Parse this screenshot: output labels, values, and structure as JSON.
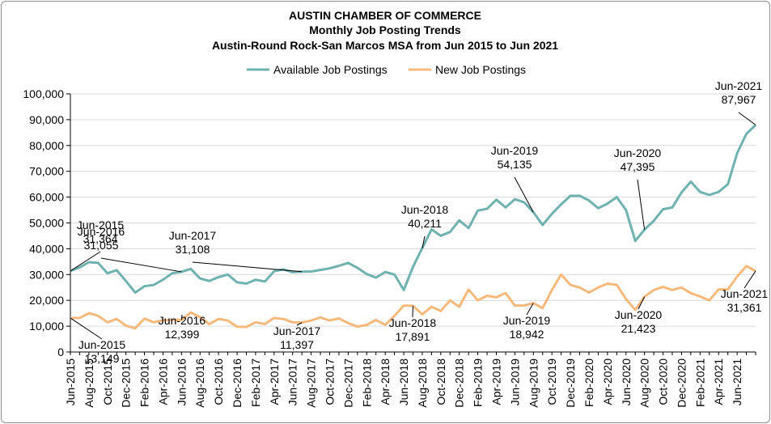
{
  "chart_data": {
    "type": "line",
    "title": [
      "AUSTIN CHAMBER OF COMMERCE",
      "Monthly Job Posting Trends",
      "Austin-Round Rock-San Marcos MSA from Jun 2015 to Jun 2021"
    ],
    "ylim": [
      0,
      100000
    ],
    "yticks": [
      "0",
      "10,000",
      "20,000",
      "30,000",
      "40,000",
      "50,000",
      "60,000",
      "70,000",
      "80,000",
      "90,000",
      "100,000"
    ],
    "x_labels": [
      "Jun-2015",
      "Aug-2015",
      "Oct-2015",
      "Dec-2015",
      "Feb-2016",
      "Apr-2016",
      "Jun-2016",
      "Aug-2016",
      "Oct-2016",
      "Dec-2016",
      "Feb-2017",
      "Apr-2017",
      "Jun-2017",
      "Aug-2017",
      "Oct-2017",
      "Dec-2017",
      "Feb-2018",
      "Apr-2018",
      "Jun-2018",
      "Aug-2018",
      "Oct-2018",
      "Dec-2018",
      "Feb-2019",
      "Apr-2019",
      "Jun-2019",
      "Aug-2019",
      "Oct-2019",
      "Dec-2019",
      "Feb-2020",
      "Apr-2020",
      "Jun-2020",
      "Aug-2020",
      "Oct-2020",
      "Dec-2020",
      "Feb-2021",
      "Apr-2021",
      "Jun-2021"
    ],
    "legend_position": "top",
    "gridlines": true,
    "series": [
      {
        "name": "Available Job Postings",
        "color": "#6fb2b0",
        "values": [
          31364,
          32800,
          34800,
          34500,
          30500,
          31700,
          27500,
          23000,
          25500,
          26000,
          28000,
          30500,
          31055,
          32200,
          28500,
          27500,
          29000,
          30000,
          27000,
          26500,
          28000,
          27300,
          31300,
          32000,
          30900,
          31108,
          31200,
          31800,
          32400,
          33400,
          34500,
          32600,
          30200,
          28800,
          31000,
          30000,
          24000,
          33000,
          40211,
          47500,
          45000,
          46500,
          51000,
          48000,
          54800,
          55500,
          59000,
          56000,
          59200,
          58000,
          54135,
          49200,
          53500,
          57200,
          60500,
          60500,
          58700,
          55700,
          57500,
          60000,
          55000,
          43000,
          47395,
          50800,
          55300,
          56000,
          61800,
          66000,
          62000,
          60800,
          62000,
          65000,
          77000,
          84500,
          87967
        ],
        "annotations": [
          {
            "index": 0,
            "label": "Jun-2015",
            "value": "31,364"
          },
          {
            "index": 12,
            "label": "Jun-2016",
            "value": "31,055"
          },
          {
            "index": 25,
            "label": "Jun-2017",
            "value": "31,108"
          },
          {
            "index": 38,
            "label": "Jun-2018",
            "value": "40,211"
          },
          {
            "index": 50,
            "label": "Jun-2019",
            "value": "54,135"
          },
          {
            "index": 62,
            "label": "Jun-2020",
            "value": "47,395"
          },
          {
            "index": 74,
            "label": "Jun-2021",
            "value": "87,967"
          }
        ]
      },
      {
        "name": "New Job Postings",
        "color": "#f5b97c",
        "values": [
          13149,
          13200,
          15000,
          14000,
          11500,
          12800,
          10200,
          9200,
          12900,
          11500,
          12300,
          12400,
          12399,
          15300,
          13500,
          10800,
          12800,
          12200,
          9800,
          9700,
          11500,
          10800,
          13200,
          12800,
          11500,
          11397,
          12200,
          13400,
          12200,
          13000,
          11200,
          9800,
          10500,
          12400,
          10500,
          14000,
          18000,
          17891,
          14600,
          17500,
          15900,
          20000,
          17500,
          24200,
          20000,
          21800,
          21200,
          22800,
          18000,
          18000,
          18942,
          17000,
          24000,
          30000,
          26000,
          25000,
          23000,
          25000,
          26500,
          26000,
          20500,
          16300,
          21423,
          24000,
          25200,
          24000,
          25000,
          22800,
          21500,
          20000,
          24200,
          24300,
          29200,
          33300,
          31361
        ],
        "annotations": [
          {
            "index": 0,
            "label": "Jun-2015",
            "value": "13,149"
          },
          {
            "index": 12,
            "label": "Jun-2016",
            "value": "12,399"
          },
          {
            "index": 25,
            "label": "Jun-2017",
            "value": "11,397"
          },
          {
            "index": 37,
            "label": "Jun-2018",
            "value": "17,891"
          },
          {
            "index": 50,
            "label": "Jun-2019",
            "value": "18,942"
          },
          {
            "index": 62,
            "label": "Jun-2020",
            "value": "21,423"
          },
          {
            "index": 74,
            "label": "Jun-2021",
            "value": "31,361"
          }
        ]
      }
    ]
  }
}
